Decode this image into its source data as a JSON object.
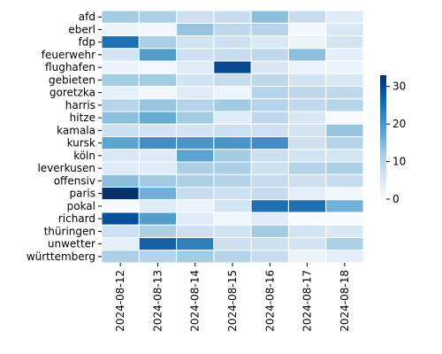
{
  "chart_data": {
    "type": "heatmap",
    "title": "",
    "xlabel": "",
    "ylabel": "",
    "x": [
      "2024-08-12",
      "2024-08-13",
      "2024-08-14",
      "2024-08-15",
      "2024-08-16",
      "2024-08-17",
      "2024-08-18"
    ],
    "y": [
      "afd",
      "eberl",
      "fdp",
      "feuerwehr",
      "flughafen",
      "gebieten",
      "goretzka",
      "harris",
      "hitze",
      "kamala",
      "kursk",
      "köln",
      "leverkusen",
      "offensiv",
      "paris",
      "pokal",
      "richard",
      "thüringen",
      "unwetter",
      "württemberg"
    ],
    "values": [
      [
        12,
        11,
        7,
        8,
        14,
        8,
        4
      ],
      [
        2,
        1,
        13,
        9,
        10,
        1,
        5
      ],
      [
        25,
        11,
        6,
        7,
        5,
        2,
        6
      ],
      [
        6,
        19,
        7,
        8,
        9,
        14,
        3
      ],
      [
        2,
        1,
        4,
        30,
        5,
        2,
        2
      ],
      [
        12,
        12,
        6,
        8,
        9,
        6,
        5
      ],
      [
        3,
        1,
        4,
        2,
        10,
        9,
        9
      ],
      [
        10,
        13,
        10,
        12,
        10,
        9,
        10
      ],
      [
        14,
        17,
        12,
        4,
        9,
        5,
        0
      ],
      [
        7,
        6,
        6,
        7,
        7,
        6,
        13
      ],
      [
        18,
        21,
        20,
        20,
        21,
        7,
        10
      ],
      [
        5,
        4,
        18,
        12,
        7,
        6,
        6
      ],
      [
        4,
        4,
        11,
        11,
        7,
        10,
        11
      ],
      [
        14,
        12,
        11,
        10,
        8,
        7,
        8
      ],
      [
        33,
        16,
        8,
        7,
        8,
        3,
        1
      ],
      [
        0,
        4,
        2,
        6,
        25,
        25,
        16
      ],
      [
        29,
        19,
        4,
        1,
        4,
        0,
        0
      ],
      [
        7,
        11,
        7,
        6,
        12,
        6,
        5
      ],
      [
        3,
        27,
        23,
        7,
        7,
        6,
        11
      ],
      [
        11,
        10,
        12,
        10,
        8,
        2,
        3
      ]
    ],
    "vmin": 0,
    "vmax": 33,
    "colorbar": {
      "ticks": [
        0,
        10,
        20,
        30
      ],
      "colors": [
        "#f7fbff",
        "#deebf7",
        "#c6dbef",
        "#9ecae1",
        "#6baed6",
        "#4292c6",
        "#2171b5",
        "#08519c",
        "#08306b"
      ]
    },
    "grid": true
  }
}
